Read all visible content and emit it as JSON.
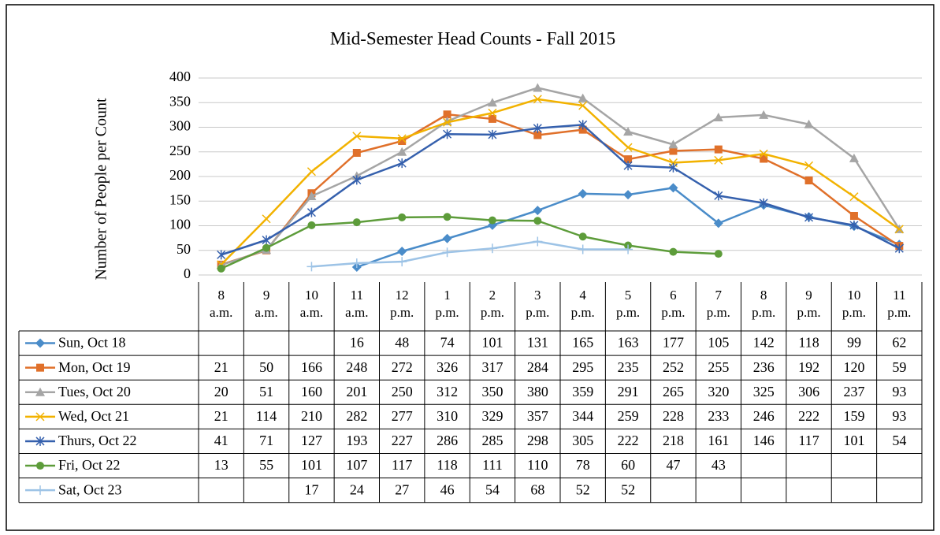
{
  "chart_data": {
    "type": "line",
    "title": "Mid-Semester Head Counts - Fall 2015",
    "y_label": "Number of People per Count",
    "categories": [
      "8 a.m.",
      "9 a.m.",
      "10 a.m.",
      "11 a.m.",
      "12 p.m.",
      "1 p.m.",
      "2 p.m.",
      "3 p.m.",
      "4 p.m.",
      "5 p.m.",
      "6 p.m.",
      "7 p.m.",
      "8 p.m.",
      "9 p.m.",
      "10 p.m.",
      "11 p.m."
    ],
    "ylim": [
      0,
      400
    ],
    "yticks": [
      0,
      50,
      100,
      150,
      200,
      250,
      300,
      350,
      400
    ],
    "grid": true,
    "series": [
      {
        "name": "Sun, Oct 18",
        "color": "#4a8cc9",
        "marker": "diamond",
        "values": [
          null,
          null,
          null,
          16,
          48,
          74,
          101,
          131,
          165,
          163,
          177,
          105,
          142,
          118,
          99,
          62
        ]
      },
      {
        "name": "Mon, Oct 19",
        "color": "#e0702a",
        "marker": "square",
        "values": [
          21,
          50,
          166,
          248,
          272,
          326,
          317,
          284,
          295,
          235,
          252,
          255,
          236,
          192,
          120,
          59
        ]
      },
      {
        "name": "Tues, Oct 20",
        "color": "#a5a5a5",
        "marker": "triangle",
        "values": [
          20,
          51,
          160,
          201,
          250,
          312,
          350,
          380,
          359,
          291,
          265,
          320,
          325,
          306,
          237,
          93
        ]
      },
      {
        "name": "Wed, Oct 21",
        "color": "#f2b200",
        "marker": "x",
        "values": [
          21,
          114,
          210,
          282,
          277,
          310,
          329,
          357,
          344,
          259,
          228,
          233,
          246,
          222,
          159,
          93
        ]
      },
      {
        "name": "Thurs, Oct 22",
        "color": "#3560ad",
        "marker": "star",
        "values": [
          41,
          71,
          127,
          193,
          227,
          286,
          285,
          298,
          305,
          222,
          218,
          161,
          146,
          117,
          101,
          54
        ]
      },
      {
        "name": "Fri, Oct 22",
        "color": "#5d9c3a",
        "marker": "circle",
        "values": [
          13,
          55,
          101,
          107,
          117,
          118,
          111,
          110,
          78,
          60,
          47,
          43,
          null,
          null,
          null,
          null
        ]
      },
      {
        "name": "Sat, Oct 23",
        "color": "#9dc3e6",
        "marker": "plus",
        "values": [
          null,
          null,
          17,
          24,
          27,
          46,
          54,
          68,
          52,
          52,
          null,
          null,
          null,
          null,
          null,
          null
        ]
      }
    ]
  }
}
